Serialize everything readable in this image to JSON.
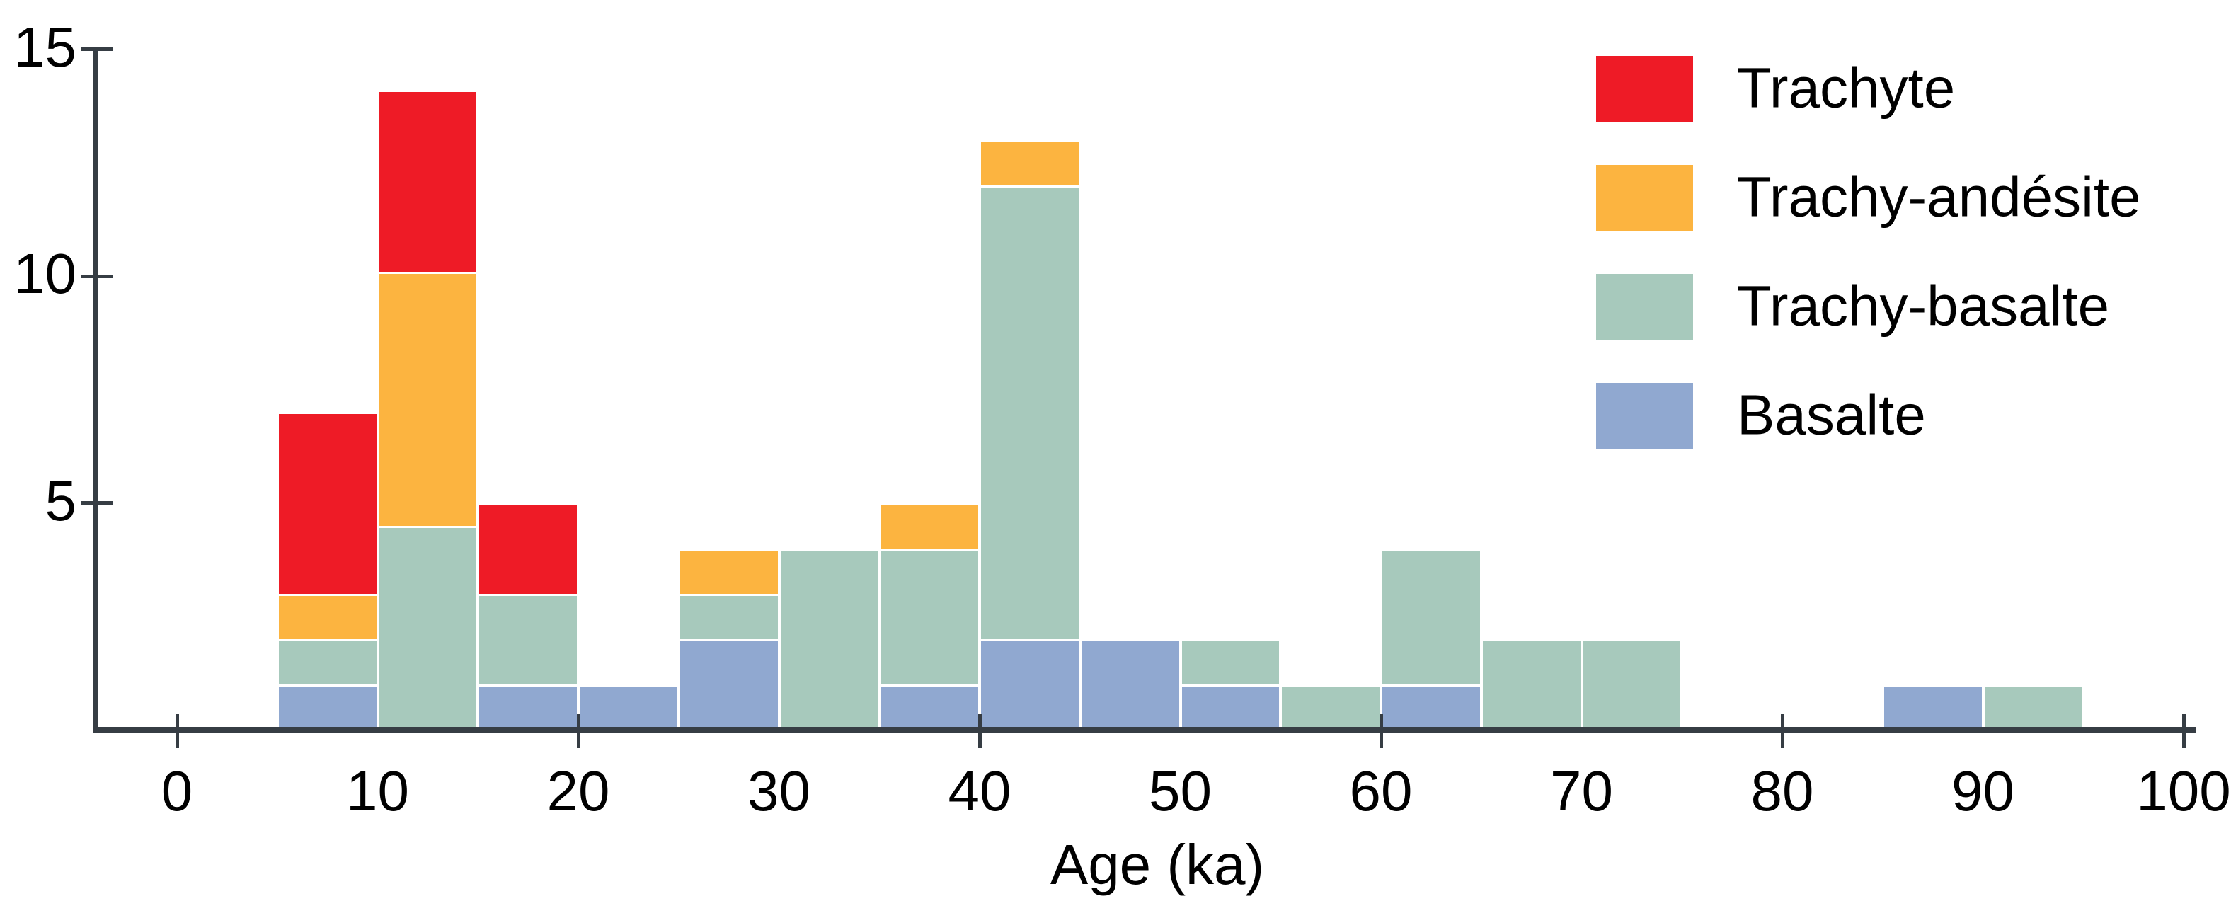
{
  "chart_data": {
    "type": "bar",
    "stacked": true,
    "title": "",
    "xlabel": "Age (ka)",
    "ylabel": "",
    "xlim": [
      0,
      100
    ],
    "ylim": [
      0,
      15
    ],
    "grid": false,
    "legend_position": "top-right",
    "bin_width_ka": 5,
    "x_tick_marks": [
      0,
      20,
      40,
      60,
      80,
      100
    ],
    "x_tick_labels": [
      "0",
      "10",
      "20",
      "30",
      "40",
      "50",
      "60",
      "70",
      "80",
      "90",
      "100"
    ],
    "x_tick_label_values": [
      0,
      10,
      20,
      30,
      40,
      50,
      60,
      70,
      80,
      90,
      100
    ],
    "y_tick_marks": [
      5,
      10,
      15
    ],
    "y_tick_labels": [
      "5",
      "10",
      "15"
    ],
    "series": [
      {
        "key": "trachyte",
        "name": "Trachyte",
        "color": "#ee1b26"
      },
      {
        "key": "trachy_andesite",
        "name": "Trachy-andésite",
        "color": "#fcb440"
      },
      {
        "key": "trachy_basalte",
        "name": "Trachy-basalte",
        "color": "#a7c9bc"
      },
      {
        "key": "basalte",
        "name": "Basalte",
        "color": "#90a8d0"
      }
    ],
    "stack_order_bottom_to_top": [
      "basalte",
      "trachy_basalte",
      "trachy_andesite",
      "trachyte"
    ],
    "bins": [
      {
        "start": 5,
        "end": 10,
        "basalte": 1,
        "trachy_basalte": 1,
        "trachy_andesite": 1,
        "trachyte": 4
      },
      {
        "start": 10,
        "end": 15,
        "basalte": 0,
        "trachy_basalte": 4.5,
        "trachy_andesite": 5.6,
        "trachyte": 4
      },
      {
        "start": 15,
        "end": 20,
        "basalte": 1,
        "trachy_basalte": 2,
        "trachy_andesite": 0,
        "trachyte": 2
      },
      {
        "start": 20,
        "end": 25,
        "basalte": 1,
        "trachy_basalte": 0,
        "trachy_andesite": 0,
        "trachyte": 0
      },
      {
        "start": 25,
        "end": 30,
        "basalte": 2,
        "trachy_basalte": 1,
        "trachy_andesite": 1,
        "trachyte": 0
      },
      {
        "start": 30,
        "end": 35,
        "basalte": 0,
        "trachy_basalte": 4,
        "trachy_andesite": 0,
        "trachyte": 0
      },
      {
        "start": 35,
        "end": 40,
        "basalte": 1,
        "trachy_basalte": 3,
        "trachy_andesite": 1,
        "trachyte": 0
      },
      {
        "start": 40,
        "end": 45,
        "basalte": 2,
        "trachy_basalte": 10,
        "trachy_andesite": 1,
        "trachyte": 0
      },
      {
        "start": 45,
        "end": 50,
        "basalte": 2,
        "trachy_basalte": 0,
        "trachy_andesite": 0,
        "trachyte": 0
      },
      {
        "start": 50,
        "end": 55,
        "basalte": 1,
        "trachy_basalte": 1,
        "trachy_andesite": 0,
        "trachyte": 0
      },
      {
        "start": 55,
        "end": 60,
        "basalte": 0,
        "trachy_basalte": 1,
        "trachy_andesite": 0,
        "trachyte": 0
      },
      {
        "start": 60,
        "end": 65,
        "basalte": 1,
        "trachy_basalte": 3,
        "trachy_andesite": 0,
        "trachyte": 0
      },
      {
        "start": 65,
        "end": 70,
        "basalte": 0,
        "trachy_basalte": 2,
        "trachy_andesite": 0,
        "trachyte": 0
      },
      {
        "start": 70,
        "end": 75,
        "basalte": 0,
        "trachy_basalte": 2,
        "trachy_andesite": 0,
        "trachyte": 0
      },
      {
        "start": 85,
        "end": 90,
        "basalte": 1,
        "trachy_basalte": 0,
        "trachy_andesite": 0,
        "trachyte": 0
      },
      {
        "start": 90,
        "end": 95,
        "basalte": 0,
        "trachy_basalte": 1,
        "trachy_andesite": 0,
        "trachyte": 0
      }
    ]
  },
  "colors": {
    "axis": "#363d44",
    "background": "#ffffff",
    "text": "#000000"
  }
}
